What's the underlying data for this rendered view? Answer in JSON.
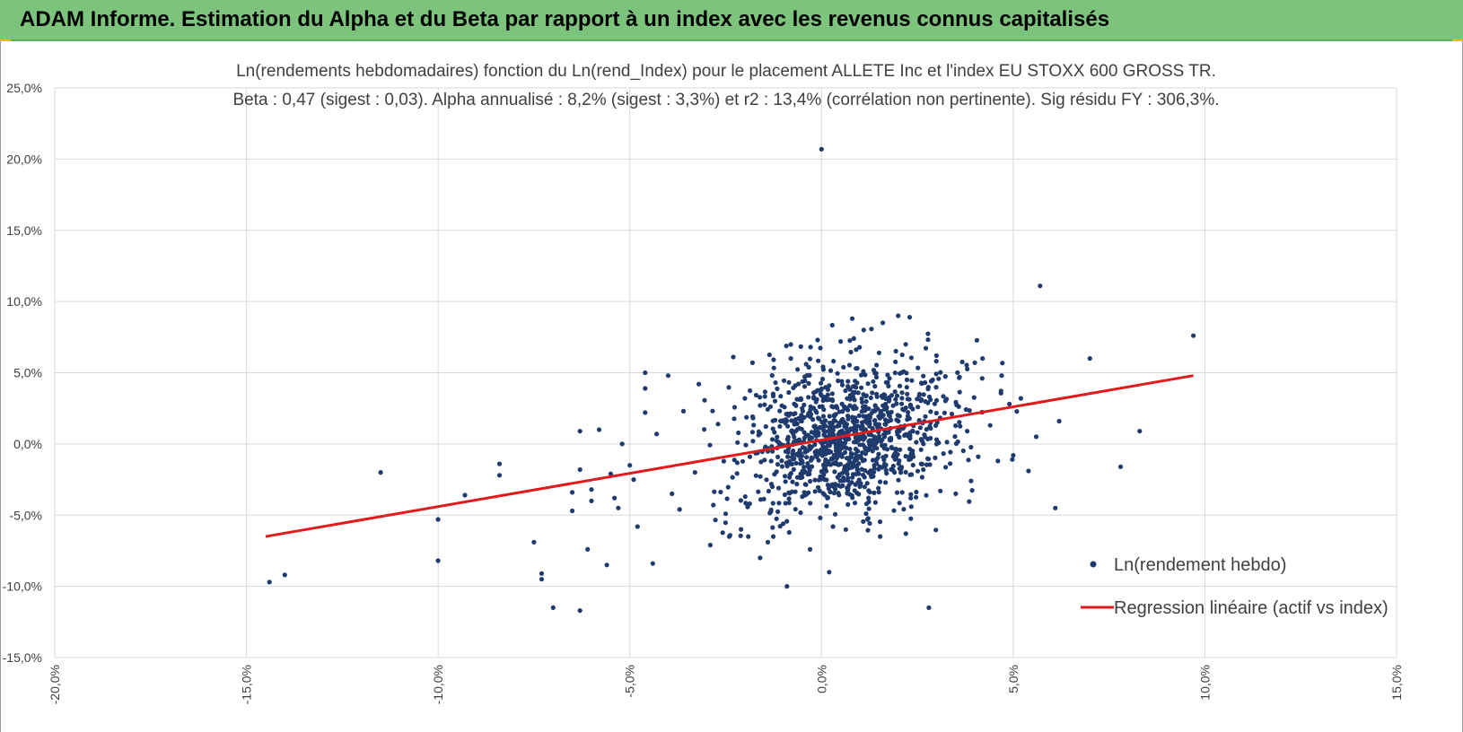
{
  "header": {
    "title": "ADAM Informe. Estimation du Alpha et du Beta par rapport à un index avec les revenus connus capitalisés"
  },
  "colors": {
    "header_bg": "#7cc47c",
    "points": "#1f3b6e",
    "regression": "#e31a1c",
    "grid": "#d9d9d9",
    "corner_accent": "#f2b81c"
  },
  "chart_data": {
    "type": "scatter",
    "title": "",
    "subtitle_lines": [
      "Ln(rendements hebdomadaires) fonction du Ln(rend_Index) pour le placement ALLETE Inc et l'index EU STOXX 600 GROSS TR.",
      "Beta : 0,47 (sigest : 0,03). Alpha annualisé : 8,2% (sigest : 3,3%) et r2 : 13,4% (corrélation non pertinente). Sig résidu FY : 306,3%."
    ],
    "xlabel": "",
    "ylabel": "",
    "xlim": [
      -20,
      15
    ],
    "ylim": [
      -15,
      25
    ],
    "x_ticks": [
      "-20,0%",
      "-15,0%",
      "-10,0%",
      "-5,0%",
      "0,0%",
      "5,0%",
      "10,0%",
      "15,0%"
    ],
    "y_ticks": [
      "25,0%",
      "20,0%",
      "15,0%",
      "10,0%",
      "5,0%",
      "0,0%",
      "-5,0%",
      "-10,0%",
      "-15,0%"
    ],
    "grid": true,
    "legend_position": "bottom-right",
    "series": [
      {
        "name": "Ln(rendement hebdo)",
        "kind": "scatter",
        "points": [
          [
            -14.4,
            -9.7
          ],
          [
            -14.0,
            -9.2
          ],
          [
            -11.5,
            -2.0
          ],
          [
            -10.0,
            -8.2
          ],
          [
            -10.0,
            -5.3
          ],
          [
            -9.3,
            -3.6
          ],
          [
            -8.4,
            -1.4
          ],
          [
            -8.4,
            -2.2
          ],
          [
            -7.5,
            -6.9
          ],
          [
            -7.3,
            -9.1
          ],
          [
            -7.3,
            -9.5
          ],
          [
            -7.0,
            -11.5
          ],
          [
            -6.3,
            -11.7
          ],
          [
            -6.1,
            -7.4
          ],
          [
            -6.5,
            -4.7
          ],
          [
            -6.5,
            -3.4
          ],
          [
            -6.3,
            0.9
          ],
          [
            -6.3,
            -1.8
          ],
          [
            -6.0,
            -3.2
          ],
          [
            -6.0,
            -4.0
          ],
          [
            -5.8,
            1.0
          ],
          [
            -5.6,
            -8.5
          ],
          [
            -5.5,
            -2.1
          ],
          [
            -5.4,
            -3.8
          ],
          [
            -5.3,
            -4.5
          ],
          [
            -5.2,
            0.0
          ],
          [
            -5.0,
            -1.5
          ],
          [
            -4.9,
            -2.5
          ],
          [
            -4.8,
            -5.8
          ],
          [
            -4.6,
            2.2
          ],
          [
            -4.6,
            5.0
          ],
          [
            -4.6,
            3.9
          ],
          [
            -4.4,
            -8.4
          ],
          [
            -4.3,
            0.7
          ],
          [
            -4.0,
            4.8
          ],
          [
            -3.9,
            -3.5
          ],
          [
            -3.7,
            -4.6
          ],
          [
            -3.6,
            2.3
          ],
          [
            -3.3,
            -2.0
          ],
          [
            -3.2,
            4.2
          ],
          [
            -2.9,
            -7.1
          ],
          [
            -2.7,
            1.4
          ],
          [
            -2.5,
            -4.9
          ],
          [
            -2.3,
            6.1
          ],
          [
            -2.1,
            -6.0
          ],
          [
            -2.0,
            3.2
          ],
          [
            -1.8,
            5.7
          ],
          [
            -1.6,
            -8.0
          ],
          [
            -1.4,
            -6.9
          ],
          [
            -1.2,
            4.3
          ],
          [
            -1.0,
            -5.6
          ],
          [
            -0.9,
            -10.0
          ],
          [
            -0.8,
            6.0
          ],
          [
            -0.6,
            1.8
          ],
          [
            -0.5,
            -3.7
          ],
          [
            -0.4,
            5.6
          ],
          [
            -0.3,
            -7.4
          ],
          [
            -0.2,
            3.3
          ],
          [
            -0.1,
            7.3
          ],
          [
            0.0,
            20.7
          ],
          [
            0.1,
            -1.5
          ],
          [
            0.2,
            -9.0
          ],
          [
            0.2,
            4.1
          ],
          [
            0.3,
            -5.8
          ],
          [
            0.5,
            7.2
          ],
          [
            0.7,
            -1.0
          ],
          [
            0.8,
            8.8
          ],
          [
            0.9,
            5.3
          ],
          [
            1.0,
            -3.0
          ],
          [
            1.1,
            8.0
          ],
          [
            1.2,
            -5.3
          ],
          [
            1.4,
            2.7
          ],
          [
            1.5,
            6.4
          ],
          [
            1.6,
            8.5
          ],
          [
            1.8,
            1.1
          ],
          [
            2.0,
            9.0
          ],
          [
            2.1,
            3.6
          ],
          [
            2.2,
            -6.3
          ],
          [
            2.3,
            8.9
          ],
          [
            2.5,
            0.8
          ],
          [
            2.6,
            -1.4
          ],
          [
            2.8,
            -11.5
          ],
          [
            2.9,
            4.5
          ],
          [
            3.0,
            6.2
          ],
          [
            3.1,
            -3.3
          ],
          [
            3.4,
            2.1
          ],
          [
            3.5,
            -3.5
          ],
          [
            3.6,
            4.7
          ],
          [
            3.8,
            0.9
          ],
          [
            3.9,
            -2.6
          ],
          [
            4.0,
            5.7
          ],
          [
            4.2,
            6.0
          ],
          [
            4.4,
            1.3
          ],
          [
            4.6,
            -1.2
          ],
          [
            4.7,
            4.8
          ],
          [
            4.9,
            2.8
          ],
          [
            5.0,
            -0.8
          ],
          [
            5.2,
            3.2
          ],
          [
            5.4,
            -1.9
          ],
          [
            5.6,
            0.5
          ],
          [
            5.7,
            11.1
          ],
          [
            6.1,
            -4.5
          ],
          [
            6.2,
            1.6
          ],
          [
            7.0,
            6.0
          ],
          [
            7.8,
            -1.6
          ],
          [
            8.3,
            0.9
          ],
          [
            9.7,
            7.6
          ]
        ],
        "cluster": {
          "center_x": 0.6,
          "center_y": 0.4,
          "sd_x": 1.4,
          "sd_y": 2.6,
          "beta": 0.47,
          "count": 1100
        }
      },
      {
        "name": "Regression linéaire (actif vs index)",
        "kind": "line",
        "points": [
          [
            -14.5,
            -6.5
          ],
          [
            9.7,
            4.8
          ]
        ]
      }
    ]
  }
}
